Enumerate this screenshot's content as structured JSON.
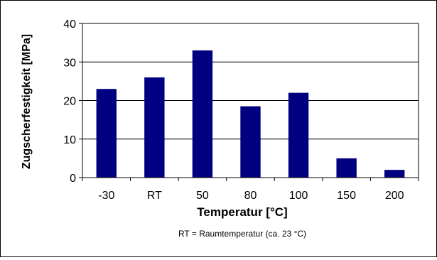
{
  "chart_data": {
    "type": "bar",
    "title": "",
    "categories": [
      "-30",
      "RT",
      "50",
      "80",
      "100",
      "150",
      "200"
    ],
    "values": [
      23,
      26,
      33,
      18.5,
      22,
      5,
      2
    ],
    "xlabel": "Temperatur [°C]",
    "ylabel": "Zugscherfestigkeit [MPa]",
    "ylim": [
      0,
      40
    ],
    "yticks": [
      "0",
      "10",
      "20",
      "30",
      "40"
    ],
    "grid": true,
    "legend": "none",
    "annotation": "RT = Raumtemperatur (ca. 23 °C)",
    "colors": {
      "bar": "#000080",
      "grid": "#000000",
      "axis": "#000000",
      "background": "#ffffff"
    }
  }
}
